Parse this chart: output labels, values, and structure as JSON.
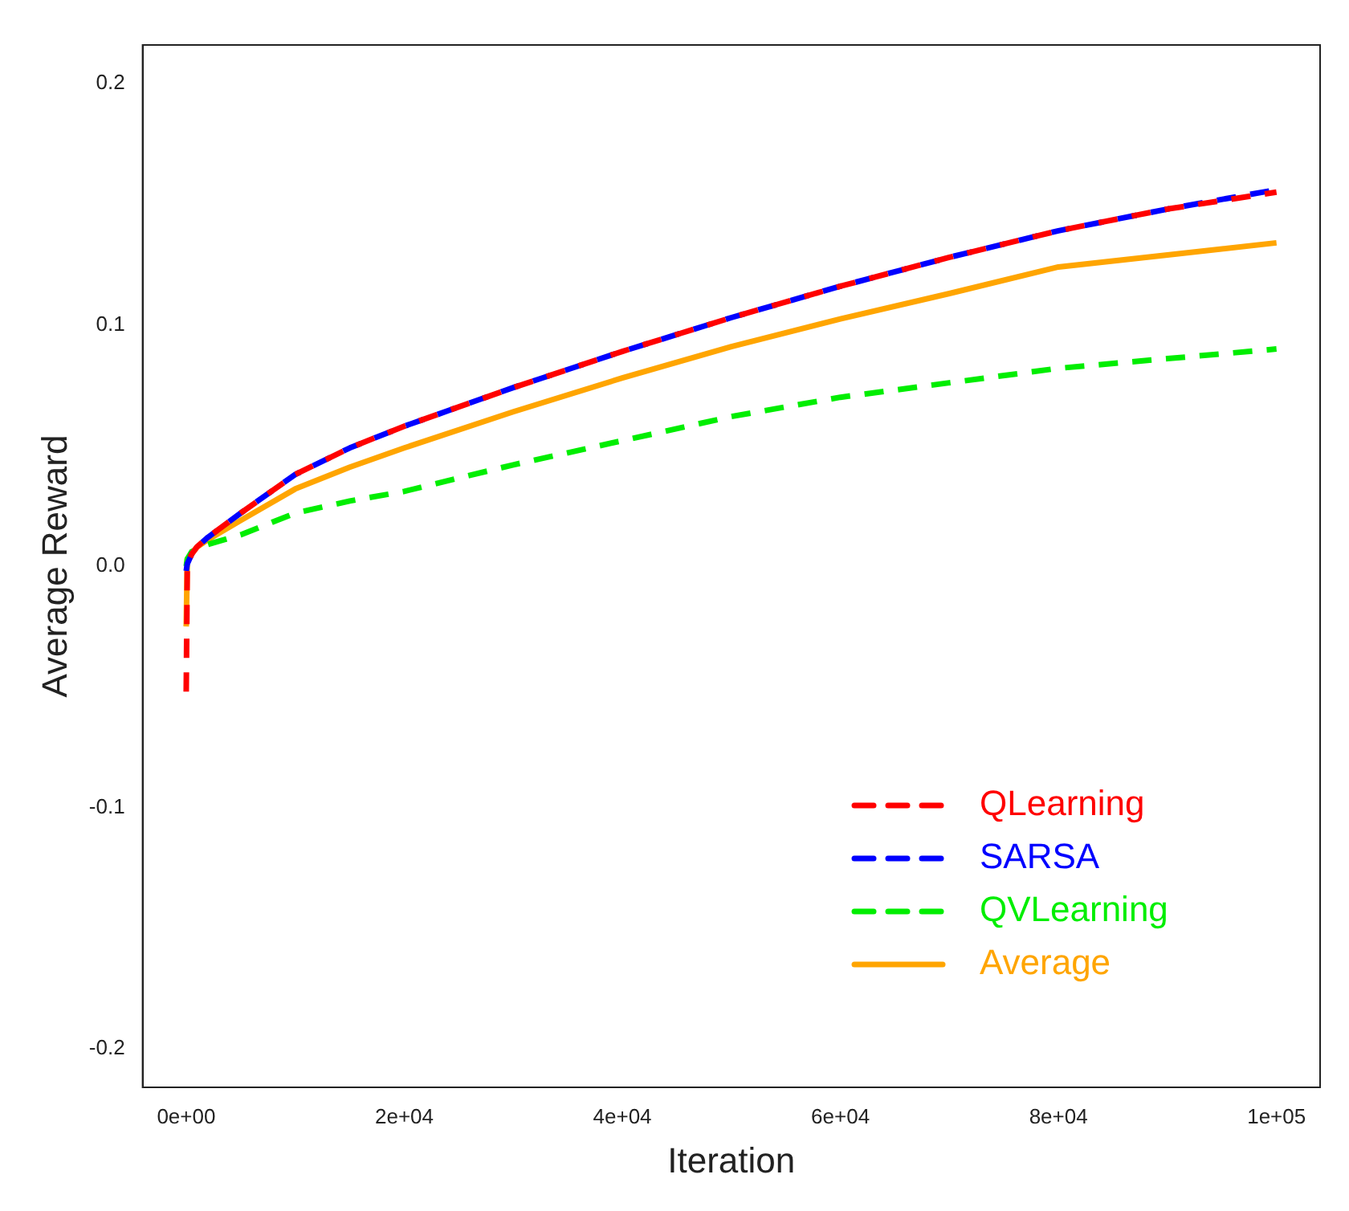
{
  "chart_data": {
    "type": "line",
    "xlabel": "Iteration",
    "ylabel": "Average Reward",
    "x": [
      0,
      100,
      500,
      1000,
      2000,
      5000,
      10000,
      15000,
      20000,
      30000,
      40000,
      50000,
      60000,
      70000,
      80000,
      90000,
      100000
    ],
    "series": [
      {
        "name": "QLearning",
        "color": "#ff0000",
        "line_style": "dashed",
        "values": [
          -0.052,
          0.001,
          0.005,
          0.008,
          0.012,
          0.022,
          0.038,
          0.049,
          0.058,
          0.074,
          0.089,
          0.103,
          0.116,
          0.128,
          0.139,
          0.148,
          0.155
        ]
      },
      {
        "name": "SARSA",
        "color": "#0000ff",
        "line_style": "dashed",
        "values": [
          -0.002,
          0.001,
          0.005,
          0.008,
          0.012,
          0.022,
          0.038,
          0.049,
          0.058,
          0.074,
          0.089,
          0.103,
          0.116,
          0.128,
          0.139,
          0.148,
          0.156
        ]
      },
      {
        "name": "QVLearning",
        "color": "#00ee00",
        "line_style": "dashed",
        "values": [
          0,
          0.003,
          0.006,
          0.007,
          0.009,
          0.013,
          0.022,
          0.027,
          0.031,
          0.042,
          0.052,
          0.062,
          0.07,
          0.076,
          0.082,
          0.086,
          0.09
        ]
      },
      {
        "name": "Average",
        "color": "#ffa500",
        "line_style": "solid",
        "values": [
          -0.025,
          0.003,
          0.005,
          0.008,
          0.011,
          0.019,
          0.032,
          0.041,
          0.049,
          0.064,
          0.078,
          0.091,
          0.1025,
          0.113,
          0.124,
          0.129,
          0.134
        ]
      }
    ],
    "xlim": [
      -4000,
      104000
    ],
    "xticks": [
      {
        "value": 0,
        "label": "0e+00"
      },
      {
        "value": 20000,
        "label": "2e+04"
      },
      {
        "value": 40000,
        "label": "4e+04"
      },
      {
        "value": 60000,
        "label": "6e+04"
      },
      {
        "value": 80000,
        "label": "8e+04"
      },
      {
        "value": 100000,
        "label": "1e+05"
      }
    ],
    "ylim": [
      -0.216,
      0.216
    ],
    "yticks": [
      -0.2,
      -0.1,
      {
        "value": 0,
        "label": "0.0"
      },
      0.1,
      0.2
    ],
    "legend": "bottom right",
    "grid": false
  }
}
